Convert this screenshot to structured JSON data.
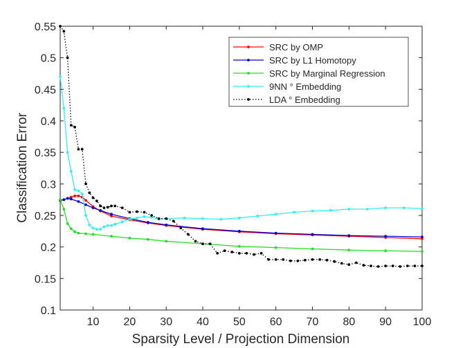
{
  "chart_data": {
    "type": "line",
    "title": "",
    "xlabel": "Sparsity Level / Projection Dimension",
    "ylabel": "Classification Error",
    "xlim": [
      1,
      100
    ],
    "ylim": [
      0.1,
      0.55
    ],
    "x_ticks": [
      10,
      20,
      30,
      40,
      50,
      60,
      70,
      80,
      90,
      100
    ],
    "y_ticks": [
      0.1,
      0.15,
      0.2,
      0.25,
      0.3,
      0.35,
      0.4,
      0.45,
      0.5,
      0.55
    ],
    "x_tick_labels": [
      "10",
      "20",
      "30",
      "40",
      "50",
      "60",
      "70",
      "80",
      "90",
      "100"
    ],
    "y_tick_labels": [
      "0.1",
      "0.15",
      "0.2",
      "0.25",
      "0.3",
      "0.35",
      "0.4",
      "0.45",
      "0.5",
      "0.55"
    ],
    "grid": false,
    "legend_position": "top-right",
    "series": [
      {
        "name": "SRC by OMP",
        "color": "#ff0000",
        "style": "solid",
        "x": [
          1,
          2,
          3,
          4,
          5,
          6,
          7,
          8,
          10,
          12,
          15,
          20,
          25,
          30,
          40,
          50,
          60,
          70,
          80,
          90,
          100
        ],
        "y": [
          0.274,
          0.275,
          0.277,
          0.279,
          0.281,
          0.281,
          0.279,
          0.274,
          0.264,
          0.257,
          0.249,
          0.243,
          0.238,
          0.234,
          0.228,
          0.224,
          0.221,
          0.219,
          0.217,
          0.215,
          0.213
        ]
      },
      {
        "name": "SRC by L1 Homotopy",
        "color": "#0000cc",
        "style": "solid",
        "x": [
          1,
          2,
          3,
          4,
          6,
          8,
          10,
          12,
          15,
          20,
          25,
          30,
          40,
          50,
          60,
          70,
          80,
          90,
          100
        ],
        "y": [
          0.274,
          0.275,
          0.277,
          0.276,
          0.272,
          0.267,
          0.262,
          0.258,
          0.252,
          0.245,
          0.239,
          0.235,
          0.229,
          0.225,
          0.222,
          0.22,
          0.218,
          0.217,
          0.216
        ]
      },
      {
        "name": "SRC by Marginal Regression",
        "color": "#22dd22",
        "style": "solid",
        "x": [
          1,
          2,
          3,
          4,
          5,
          6,
          8,
          10,
          15,
          20,
          25,
          30,
          40,
          50,
          60,
          70,
          80,
          90,
          100
        ],
        "y": [
          0.275,
          0.26,
          0.237,
          0.229,
          0.224,
          0.222,
          0.221,
          0.22,
          0.217,
          0.214,
          0.212,
          0.209,
          0.205,
          0.201,
          0.199,
          0.197,
          0.195,
          0.194,
          0.193
        ]
      },
      {
        "name": "9NN ° Embedding",
        "color": "#33eeee",
        "style": "solid",
        "x": [
          1,
          2,
          3,
          4,
          5,
          6,
          7,
          8,
          9,
          10,
          11,
          12,
          13,
          14,
          15,
          16,
          18,
          20,
          22,
          24,
          26,
          28,
          30,
          35,
          40,
          45,
          50,
          55,
          60,
          65,
          70,
          75,
          80,
          85,
          90,
          95,
          100
        ],
        "y": [
          0.47,
          0.42,
          0.35,
          0.32,
          0.291,
          0.289,
          0.284,
          0.25,
          0.235,
          0.23,
          0.228,
          0.228,
          0.232,
          0.234,
          0.234,
          0.236,
          0.24,
          0.244,
          0.246,
          0.248,
          0.247,
          0.244,
          0.245,
          0.246,
          0.245,
          0.244,
          0.246,
          0.249,
          0.252,
          0.255,
          0.257,
          0.258,
          0.26,
          0.26,
          0.262,
          0.262,
          0.261
        ]
      },
      {
        "name": "LDA ° Embedding",
        "color": "#000000",
        "style": "dotted",
        "x": [
          1,
          2,
          3,
          4,
          5,
          6,
          7,
          8,
          9,
          10,
          11,
          12,
          13,
          14,
          15,
          16,
          18,
          20,
          22,
          24,
          26,
          28,
          30,
          32,
          34,
          36,
          38,
          40,
          42,
          44,
          46,
          48,
          50,
          52,
          54,
          56,
          58,
          60,
          62,
          64,
          66,
          68,
          70,
          72,
          74,
          76,
          78,
          80,
          82,
          84,
          86,
          88,
          90,
          92,
          94,
          96,
          98,
          100
        ],
        "y": [
          0.55,
          0.542,
          0.5,
          0.393,
          0.39,
          0.355,
          0.355,
          0.3,
          0.286,
          0.278,
          0.273,
          0.265,
          0.262,
          0.263,
          0.265,
          0.265,
          0.262,
          0.255,
          0.256,
          0.255,
          0.25,
          0.245,
          0.245,
          0.241,
          0.23,
          0.22,
          0.209,
          0.205,
          0.205,
          0.19,
          0.194,
          0.192,
          0.19,
          0.19,
          0.188,
          0.19,
          0.18,
          0.18,
          0.18,
          0.178,
          0.178,
          0.179,
          0.18,
          0.18,
          0.179,
          0.177,
          0.174,
          0.172,
          0.175,
          0.171,
          0.17,
          0.169,
          0.17,
          0.17,
          0.169,
          0.17,
          0.17,
          0.17
        ]
      }
    ]
  }
}
